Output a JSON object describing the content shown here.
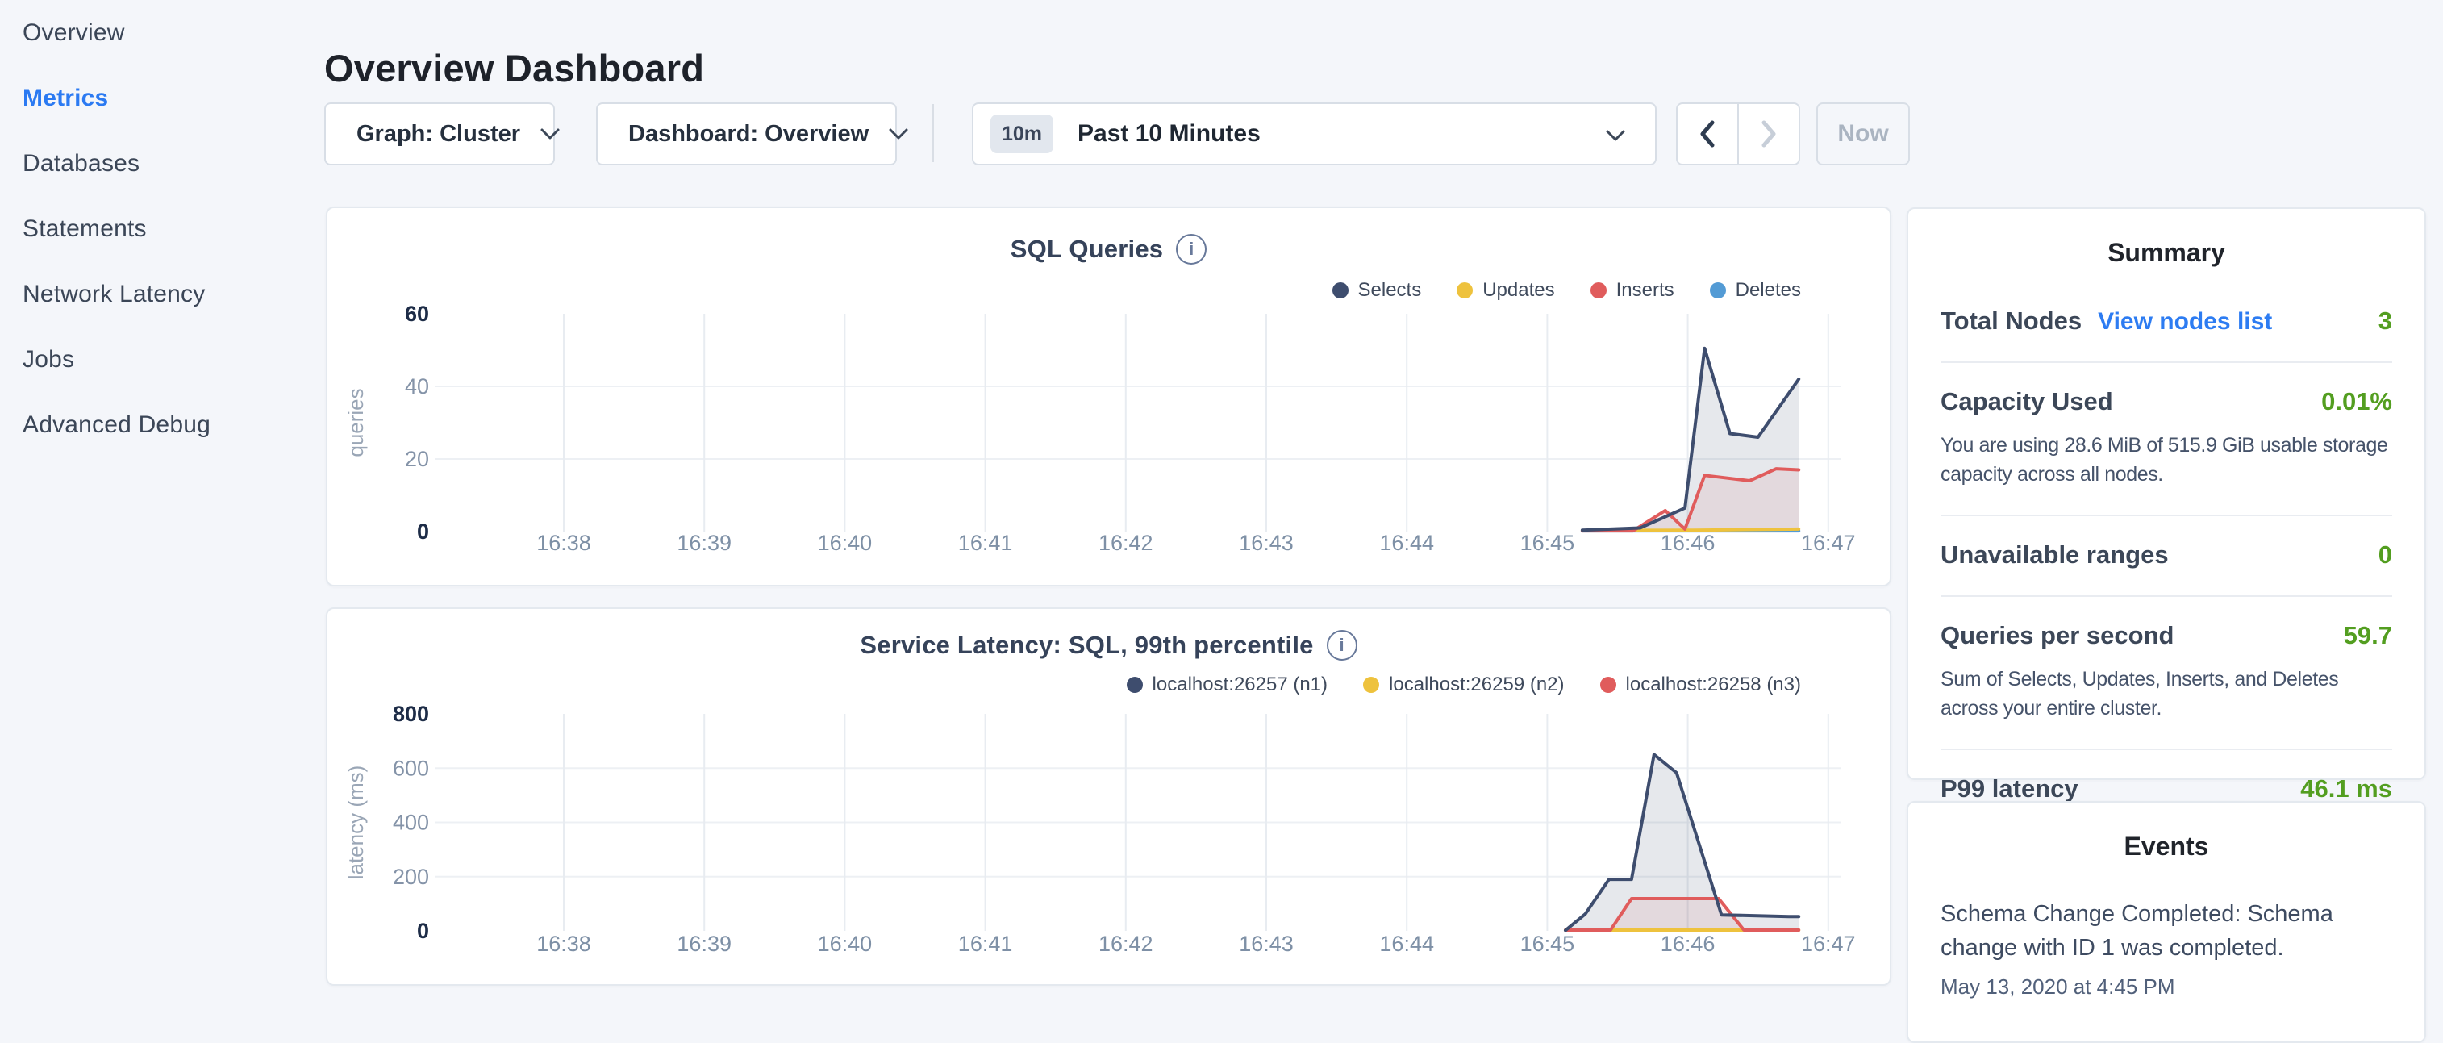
{
  "sidebar": {
    "items": [
      {
        "label": "Overview",
        "active": false
      },
      {
        "label": "Metrics",
        "active": true
      },
      {
        "label": "Databases",
        "active": false
      },
      {
        "label": "Statements",
        "active": false
      },
      {
        "label": "Network Latency",
        "active": false
      },
      {
        "label": "Jobs",
        "active": false
      },
      {
        "label": "Advanced Debug",
        "active": false
      }
    ]
  },
  "header": {
    "title": "Overview Dashboard"
  },
  "controls": {
    "graph_dropdown": "Graph: Cluster",
    "dashboard_dropdown": "Dashboard: Overview",
    "time_badge": "10m",
    "time_label": "Past 10 Minutes",
    "prev_enabled": true,
    "next_enabled": false,
    "now_label": "Now"
  },
  "chart_data": [
    {
      "type": "area",
      "title": "SQL Queries",
      "ylabel": "queries",
      "ylim": [
        0,
        60
      ],
      "yticks": [
        0,
        20,
        40,
        60
      ],
      "x_ticks": [
        "16:38",
        "16:39",
        "16:40",
        "16:41",
        "16:42",
        "16:43",
        "16:44",
        "16:45",
        "16:46",
        "16:47"
      ],
      "legend_position": "top-right",
      "grid": true,
      "series": [
        {
          "name": "Deletes",
          "color": "#539bd5",
          "fill": false,
          "points": [
            [
              7.25,
              0.2
            ],
            [
              8.79,
              0.2
            ]
          ]
        },
        {
          "name": "Updates",
          "color": "#eec23d",
          "fill": false,
          "points": [
            [
              7.25,
              0.3
            ],
            [
              8.05,
              0.4
            ],
            [
              8.79,
              0.7
            ]
          ]
        },
        {
          "name": "Inserts",
          "color": "#e05c5c",
          "fill": true,
          "points": [
            [
              7.25,
              0.2
            ],
            [
              7.61,
              0.2
            ],
            [
              7.84,
              5.8
            ],
            [
              7.98,
              0.7
            ],
            [
              8.12,
              15.5
            ],
            [
              8.44,
              14
            ],
            [
              8.63,
              17.3
            ],
            [
              8.79,
              17
            ]
          ]
        },
        {
          "name": "Selects",
          "color": "#3e4d6e",
          "fill": true,
          "points": [
            [
              7.25,
              0.4
            ],
            [
              7.66,
              1
            ],
            [
              7.98,
              6.5
            ],
            [
              8.12,
              50.5
            ],
            [
              8.3,
              27
            ],
            [
              8.5,
              26
            ],
            [
              8.79,
              42
            ]
          ]
        }
      ]
    },
    {
      "type": "area",
      "title": "Service Latency: SQL, 99th percentile",
      "ylabel": "latency (ms)",
      "ylim": [
        0,
        800
      ],
      "yticks": [
        0,
        200,
        400,
        600,
        800
      ],
      "x_ticks": [
        "16:38",
        "16:39",
        "16:40",
        "16:41",
        "16:42",
        "16:43",
        "16:44",
        "16:45",
        "16:46",
        "16:47"
      ],
      "legend_position": "top-right",
      "grid": true,
      "series": [
        {
          "name": "localhost:26259 (n2)",
          "color": "#eec23d",
          "fill": false,
          "legend_order": 1,
          "points": [
            [
              7.13,
              3
            ],
            [
              8.79,
              3
            ]
          ]
        },
        {
          "name": "localhost:26258 (n3)",
          "color": "#e05c5c",
          "fill": true,
          "legend_order": 2,
          "points": [
            [
              7.13,
              3
            ],
            [
              7.45,
              3
            ],
            [
              7.6,
              119
            ],
            [
              8.22,
              119
            ],
            [
              8.4,
              3
            ],
            [
              8.79,
              3
            ]
          ]
        },
        {
          "name": "localhost:26257 (n1)",
          "color": "#3e4d6e",
          "fill": true,
          "legend_order": 0,
          "points": [
            [
              7.13,
              2
            ],
            [
              7.27,
              62
            ],
            [
              7.44,
              190
            ],
            [
              7.6,
              190
            ],
            [
              7.76,
              650
            ],
            [
              7.92,
              583
            ],
            [
              8.24,
              59
            ],
            [
              8.72,
              53
            ],
            [
              8.79,
              53
            ]
          ]
        }
      ]
    }
  ],
  "summary": {
    "title": "Summary",
    "rows": [
      {
        "label": "Total Nodes",
        "link": "View nodes list",
        "value": "3"
      },
      {
        "label": "Capacity Used",
        "value": "0.01%",
        "desc": "You are using 28.6 MiB of 515.9 GiB usable storage capacity across all nodes."
      },
      {
        "label": "Unavailable ranges",
        "value": "0"
      },
      {
        "label": "Queries per second",
        "value": "59.7",
        "desc": "Sum of Selects, Updates, Inserts, and Deletes across your entire cluster."
      },
      {
        "label": "P99 latency",
        "value": "46.1 ms"
      }
    ]
  },
  "events": {
    "title": "Events",
    "items": [
      {
        "text": "Schema Change Completed: Schema change with ID 1 was completed.",
        "date": "May 13, 2020 at 4:45 PM"
      }
    ]
  },
  "colors": {
    "accent_blue": "#2b7af2",
    "status_green": "#539e20",
    "series_navy": "#3e4d6e",
    "series_red": "#e05c5c",
    "series_yellow": "#eec23d",
    "series_blue": "#539bd5"
  }
}
